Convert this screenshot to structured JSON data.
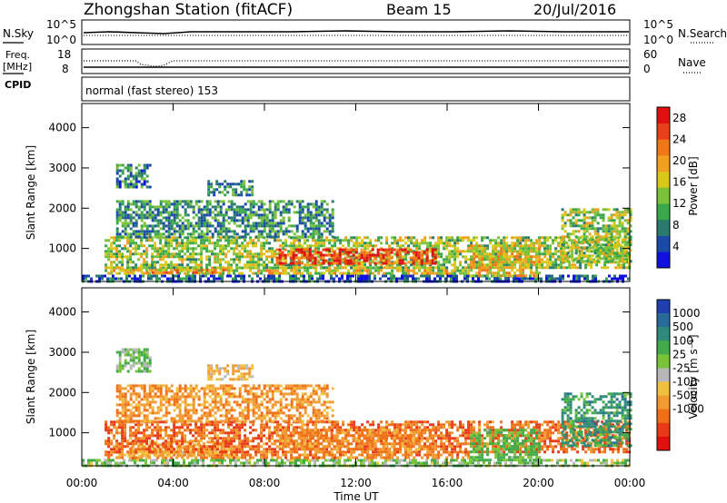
{
  "header": {
    "station": "Zhongshan Station (fitACF)",
    "beam": "Beam 15",
    "date": "20/Jul/2016"
  },
  "summary_panels": {
    "nsky_label": "N.Sky",
    "nsky_ticks": [
      "10^5",
      "10^0"
    ],
    "nsearch_label": "N.Search",
    "nsearch_ticks": [
      "10^5",
      "10^0"
    ],
    "freq_label_line1": "Freq.",
    "freq_label_line2": "[MHz]",
    "freq_ticks": [
      "18",
      "8"
    ],
    "nave_label": "Nave",
    "nave_ticks": [
      "60",
      "0"
    ],
    "cpid_label": "CPID",
    "cpid_text": "normal (fast stereo) 153"
  },
  "colorbars": {
    "power": {
      "label": "Power [dB]",
      "ticks": [
        "28",
        "24",
        "20",
        "16",
        "12",
        "8",
        "4"
      ],
      "colors": [
        "#1010e0",
        "#1a4aa8",
        "#2a7a6e",
        "#3aa84a",
        "#7ac23a",
        "#d8c818",
        "#f0a020",
        "#f07818",
        "#e84018",
        "#e01010"
      ]
    },
    "velocity": {
      "label": "Velocity [m s⁻¹]",
      "ticks": [
        "1000",
        "500",
        "100",
        "25",
        "-25",
        "-100",
        "-500",
        "-1000"
      ],
      "colors": [
        "#2040b0",
        "#2a6a9a",
        "#2e8a7a",
        "#42aa4a",
        "#7ac43a",
        "#b8b8b8",
        "#f0c040",
        "#f09a30",
        "#f07018",
        "#e83a18",
        "#e01010"
      ]
    }
  },
  "axes": {
    "ylabel": "Slant Range [km]",
    "xlabel": "Time UT",
    "yticks": [
      "4000",
      "3000",
      "2000",
      "1000"
    ],
    "xticks": [
      "00:00",
      "04:00",
      "08:00",
      "12:00",
      "16:00",
      "20:00",
      "00:00"
    ]
  },
  "chart_data": [
    {
      "type": "heatmap",
      "title": "",
      "quantity": "Power",
      "units": "dB",
      "xlabel": "Time UT",
      "ylabel": "Slant Range [km]",
      "xlim": [
        0,
        24
      ],
      "ylim": [
        180,
        4600
      ],
      "color_scale": [
        0,
        30
      ],
      "regions": [
        {
          "t_start": 0.0,
          "t_end": 24.0,
          "r_start": 200,
          "r_end": 350,
          "level": 5
        },
        {
          "t_start": 1.0,
          "t_end": 17.0,
          "r_start": 350,
          "r_end": 550,
          "level": 16
        },
        {
          "t_start": 1.5,
          "t_end": 6.5,
          "r_start": 400,
          "r_end": 500,
          "level": 20
        },
        {
          "t_start": 1.0,
          "t_end": 24.0,
          "r_start": 550,
          "r_end": 1300,
          "level": 14
        },
        {
          "t_start": 8.5,
          "t_end": 15.5,
          "r_start": 600,
          "r_end": 1000,
          "level": 26
        },
        {
          "t_start": 17.0,
          "t_end": 20.0,
          "r_start": 300,
          "r_end": 1100,
          "level": 18
        },
        {
          "t_start": 1.5,
          "t_end": 11.0,
          "r_start": 1300,
          "r_end": 2200,
          "level": 9
        },
        {
          "t_start": 1.5,
          "t_end": 3.0,
          "r_start": 2500,
          "r_end": 3100,
          "level": 8
        },
        {
          "t_start": 5.5,
          "t_end": 7.5,
          "r_start": 2300,
          "r_end": 2700,
          "level": 9
        },
        {
          "t_start": 21.0,
          "t_end": 24.0,
          "r_start": 700,
          "r_end": 2000,
          "level": 14
        }
      ]
    },
    {
      "type": "heatmap",
      "title": "",
      "quantity": "Velocity",
      "units": "m s-1",
      "xlabel": "Time UT",
      "ylabel": "Slant Range [km]",
      "xlim": [
        0,
        24
      ],
      "ylim": [
        180,
        4600
      ],
      "color_scale": [
        -1000,
        1000
      ],
      "regions": [
        {
          "t_start": 0.0,
          "t_end": 24.0,
          "r_start": 200,
          "r_end": 350,
          "level": 60
        },
        {
          "t_start": 1.0,
          "t_end": 17.0,
          "r_start": 350,
          "r_end": 550,
          "level": -300
        },
        {
          "t_start": 2.0,
          "t_end": 6.5,
          "r_start": 400,
          "r_end": 800,
          "level": -120
        },
        {
          "t_start": 1.0,
          "t_end": 24.0,
          "r_start": 550,
          "r_end": 1300,
          "level": -400
        },
        {
          "t_start": 8.5,
          "t_end": 15.5,
          "r_start": 600,
          "r_end": 1100,
          "level": -250
        },
        {
          "t_start": 17.0,
          "t_end": 20.0,
          "r_start": 300,
          "r_end": 1100,
          "level": 120
        },
        {
          "t_start": 1.5,
          "t_end": 11.0,
          "r_start": 1300,
          "r_end": 2200,
          "level": -200
        },
        {
          "t_start": 1.5,
          "t_end": 3.0,
          "r_start": 2500,
          "r_end": 3100,
          "level": 80
        },
        {
          "t_start": 5.5,
          "t_end": 7.5,
          "r_start": 2300,
          "r_end": 2700,
          "level": -80
        },
        {
          "t_start": 21.0,
          "t_end": 24.0,
          "r_start": 700,
          "r_end": 2000,
          "level": 300
        }
      ]
    }
  ]
}
